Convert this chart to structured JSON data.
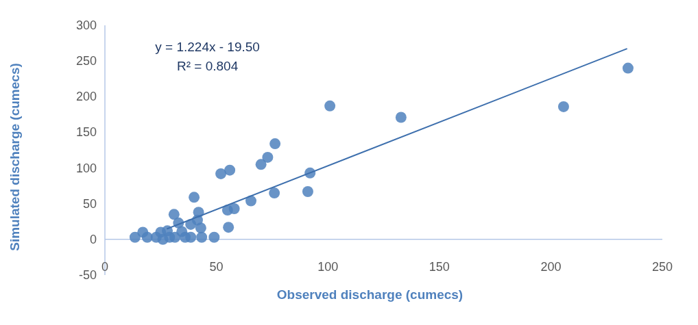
{
  "chart_data": {
    "type": "scatter",
    "xlabel": "Observed discharge (cumecs)",
    "ylabel": "Simulated discharge (cumecs)",
    "xlim": [
      0,
      250
    ],
    "ylim": [
      -50,
      300
    ],
    "xticks": [
      0,
      50,
      100,
      150,
      200,
      250
    ],
    "yticks": [
      -50,
      0,
      50,
      100,
      150,
      200,
      250,
      300
    ],
    "grid": false,
    "marker": "circle",
    "annotations": [
      "y = 1.224x - 19.50",
      "R² = 0.804"
    ],
    "series": [
      {
        "color": "#4f81bd",
        "x": [
          13.5,
          17,
          19,
          23,
          25,
          26,
          28,
          29,
          31,
          31.4,
          33,
          34.5,
          36,
          38.5,
          38.5,
          40,
          41.5,
          42,
          43,
          43.4,
          49,
          55.4,
          55,
          58,
          65.5,
          76,
          91,
          92,
          52,
          56,
          70,
          73,
          76.3,
          100.9,
          132.8,
          205.7,
          234.6
        ],
        "values": [
          3,
          10,
          3,
          3,
          10,
          0,
          12,
          3,
          35,
          3,
          23,
          11,
          3,
          21,
          3,
          59,
          27,
          38,
          16,
          3,
          3,
          17,
          41,
          43,
          54,
          65,
          67,
          93,
          92,
          97,
          105,
          115,
          134,
          187,
          171,
          186,
          240
        ]
      },
      {
        "type": "line",
        "color": "#3d6fad",
        "marker": "none",
        "line_style": "solid",
        "x": [
          28,
          234
        ],
        "values": [
          15,
          267
        ]
      }
    ]
  }
}
